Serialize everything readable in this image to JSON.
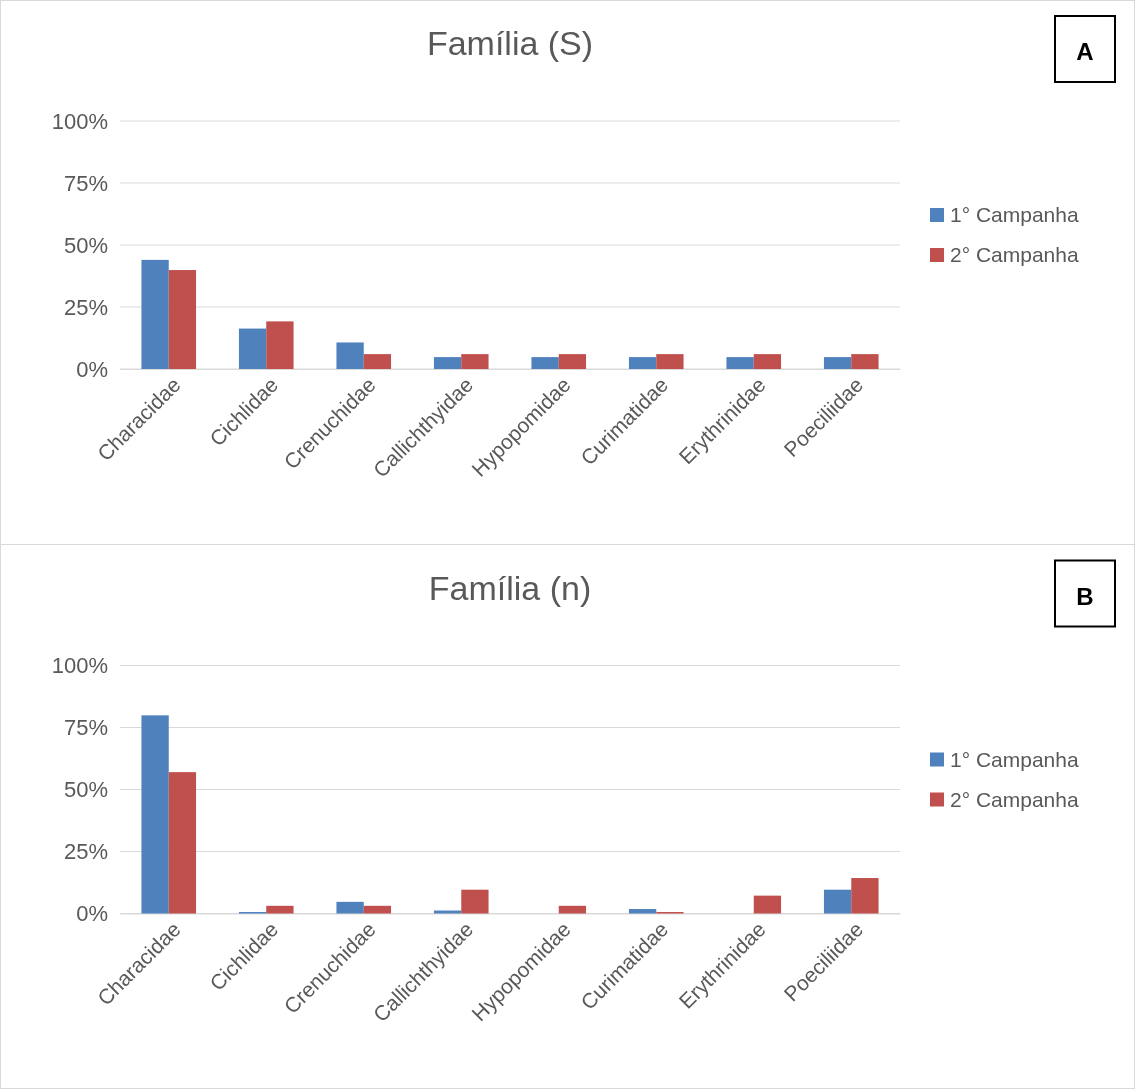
{
  "chart_data": [
    {
      "type": "bar",
      "title": "Família (S)",
      "annotations": [
        "A"
      ],
      "categories": [
        "Characidae",
        "Cichlidae",
        "Crenuchidae",
        "Callichthyidae",
        "Hypopomidae",
        "Curimatidae",
        "Erythrinidae",
        "Poeciliidae"
      ],
      "series": [
        {
          "name": "1° Campanha",
          "color": "#4f81bd",
          "values": [
            44,
            16.3,
            10.7,
            4.8,
            4.8,
            4.8,
            4.8,
            4.8
          ]
        },
        {
          "name": "2° Campanha",
          "color": "#c0504d",
          "values": [
            39.9,
            19.2,
            6,
            6,
            6,
            6,
            6,
            6
          ]
        }
      ],
      "ylim": [
        0,
        100
      ],
      "yticks": [
        {
          "value": 0,
          "label": "0%"
        },
        {
          "value": 25,
          "label": "25%"
        },
        {
          "value": 50,
          "label": "50%"
        },
        {
          "value": 75,
          "label": "75%"
        },
        {
          "value": 100,
          "label": "100%"
        }
      ],
      "grid": "y",
      "legend": "right"
    },
    {
      "type": "bar",
      "title": "Família (n)",
      "annotations": [
        "B"
      ],
      "categories": [
        "Characidae",
        "Cichlidae",
        "Crenuchidae",
        "Callichthyidae",
        "Hypopomidae",
        "Curimatidae",
        "Erythrinidae",
        "Poeciliidae"
      ],
      "series": [
        {
          "name": "1° Campanha",
          "color": "#4f81bd",
          "values": [
            79.9,
            0.6,
            4.7,
            1.2,
            0,
            1.8,
            0,
            9.6
          ]
        },
        {
          "name": "2° Campanha",
          "color": "#c0504d",
          "values": [
            57,
            3.1,
            3.1,
            9.6,
            3.1,
            0.6,
            7.2,
            14.3
          ]
        }
      ],
      "ylim": [
        0,
        100
      ],
      "yticks": [
        {
          "value": 0,
          "label": "0%"
        },
        {
          "value": 25,
          "label": "25%"
        },
        {
          "value": 50,
          "label": "50%"
        },
        {
          "value": 75,
          "label": "75%"
        },
        {
          "value": 100,
          "label": "100%"
        }
      ],
      "grid": "y",
      "legend": "right"
    }
  ]
}
